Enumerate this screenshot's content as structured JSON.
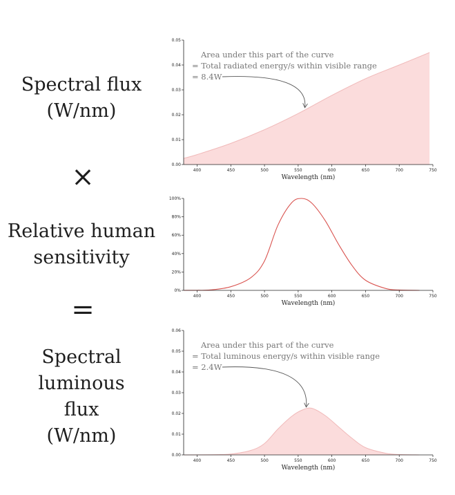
{
  "left_labels": {
    "top": [
      "Spectral flux",
      "(W/nm)"
    ],
    "times": "×",
    "middle": [
      "Relative human",
      "sensitivity"
    ],
    "equals": "=",
    "bottom": [
      "Spectral",
      "luminous",
      "flux",
      "(W/nm)"
    ]
  },
  "colors": {
    "curve": "#d9534f",
    "fill": "#fbdcdc"
  },
  "chart_data": [
    {
      "type": "area",
      "title": "",
      "xlabel": "Wavelength (nm)",
      "ylabel": "",
      "xlim": [
        380,
        750
      ],
      "ylim": [
        0,
        0.05
      ],
      "xticks": [
        400,
        450,
        500,
        550,
        600,
        650,
        700,
        750
      ],
      "yticks": [
        0,
        0.01,
        0.02,
        0.03,
        0.04,
        0.05
      ],
      "ytick_labels": [
        "0.00",
        "0.01",
        "0.02",
        "0.03",
        "0.04",
        "0.05"
      ],
      "annotation": [
        "Area under this part of the curve",
        "= Total radiated energy/s within visible range",
        "= 8.4W"
      ],
      "arrow_target": [
        560,
        0.022
      ],
      "series": [
        {
          "x": [
            380,
            400,
            450,
            500,
            550,
            600,
            650,
            700,
            745
          ],
          "values": [
            0.0025,
            0.004,
            0.0085,
            0.014,
            0.0205,
            0.0278,
            0.0345,
            0.04,
            0.045
          ]
        }
      ]
    },
    {
      "type": "line",
      "title": "",
      "xlabel": "Wavelength (nm)",
      "ylabel": "",
      "xlim": [
        380,
        750
      ],
      "ylim": [
        0,
        100
      ],
      "xticks": [
        400,
        450,
        500,
        550,
        600,
        650,
        700,
        750
      ],
      "yticks": [
        0,
        20,
        40,
        60,
        80,
        100
      ],
      "ytick_labels": [
        "0%",
        "20%",
        "40%",
        "60%",
        "80%",
        "100%"
      ],
      "series": [
        {
          "x": [
            380,
            400,
            420,
            450,
            480,
            500,
            520,
            540,
            555,
            570,
            590,
            610,
            630,
            650,
            680,
            700,
            730
          ],
          "values": [
            0,
            0.1,
            0.5,
            4,
            14,
            32,
            71,
            95,
            100,
            95,
            76,
            50,
            27,
            11,
            2,
            0.4,
            0
          ]
        }
      ]
    },
    {
      "type": "area",
      "title": "",
      "xlabel": "Wavelength (nm)",
      "ylabel": "",
      "xlim": [
        380,
        750
      ],
      "ylim": [
        0,
        0.06
      ],
      "xticks": [
        400,
        450,
        500,
        550,
        600,
        650,
        700,
        750
      ],
      "yticks": [
        0,
        0.01,
        0.02,
        0.03,
        0.04,
        0.05,
        0.06
      ],
      "ytick_labels": [
        "0.00",
        "0.01",
        "0.02",
        "0.03",
        "0.04",
        "0.05",
        "0.06"
      ],
      "annotation": [
        "Area under this part of the curve",
        "= Total luminous energy/s within visible range",
        "= 2.4W"
      ],
      "arrow_target": [
        562,
        0.022
      ],
      "series": [
        {
          "x": [
            380,
            420,
            450,
            480,
            500,
            520,
            540,
            555,
            570,
            590,
            610,
            630,
            650,
            680,
            700,
            730
          ],
          "values": [
            0,
            0.0001,
            0.0004,
            0.0022,
            0.0055,
            0.0125,
            0.0185,
            0.0215,
            0.0225,
            0.019,
            0.0135,
            0.008,
            0.0035,
            0.0008,
            0.0002,
            0
          ]
        }
      ]
    }
  ]
}
